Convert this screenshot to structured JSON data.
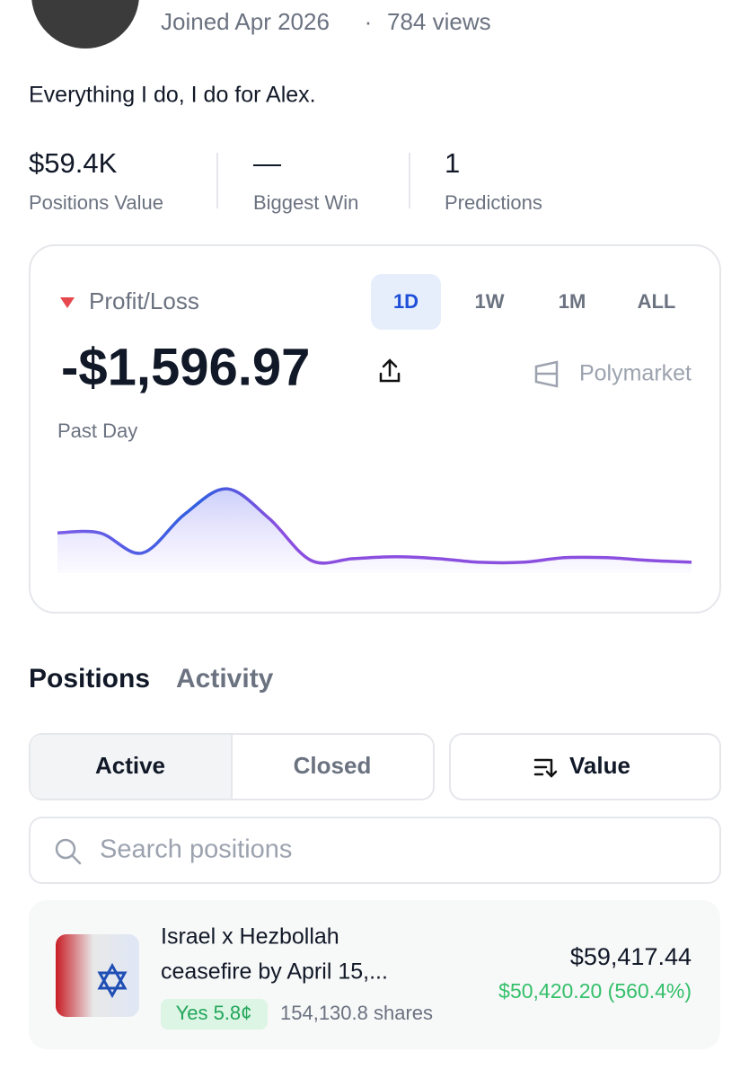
{
  "profile": {
    "joined": "Joined Apr 2026",
    "separator": "·",
    "views": "784 views",
    "bio": "Everything I do, I do for Alex."
  },
  "stats": [
    {
      "value": "$59.4K",
      "label": "Positions Value"
    },
    {
      "value": "—",
      "label": "Biggest Win"
    },
    {
      "value": "1",
      "label": "Predictions"
    }
  ],
  "profit_loss": {
    "label": "Profit/Loss",
    "ranges": [
      "1D",
      "1W",
      "1M",
      "ALL"
    ],
    "selected_range": "1D",
    "amount": "-$1,596.97",
    "brand": "Polymarket",
    "period": "Past Day"
  },
  "chart_data": {
    "type": "line",
    "values": [
      0,
      0,
      -1100,
      1000,
      2400,
      800,
      -1500,
      -1400,
      -1300,
      -1400,
      -1600,
      -1600,
      -1350,
      -1350,
      -1500,
      -1596.97
    ],
    "ylim": [
      -1800,
      2600
    ],
    "color": "#8b4fe0"
  },
  "tabs": [
    "Positions",
    "Activity"
  ],
  "filters": [
    "Active",
    "Closed"
  ],
  "sort": "Value",
  "search_placeholder": "Search positions",
  "positions": [
    {
      "title_lines": [
        "Israel x Hezbollah",
        "ceasefire by April 15,..."
      ],
      "outcome": "Yes 5.8¢",
      "shares": "154,130.8 shares",
      "value": "$59,417.44",
      "pnl": "$50,420.20 (560.4%)"
    }
  ]
}
